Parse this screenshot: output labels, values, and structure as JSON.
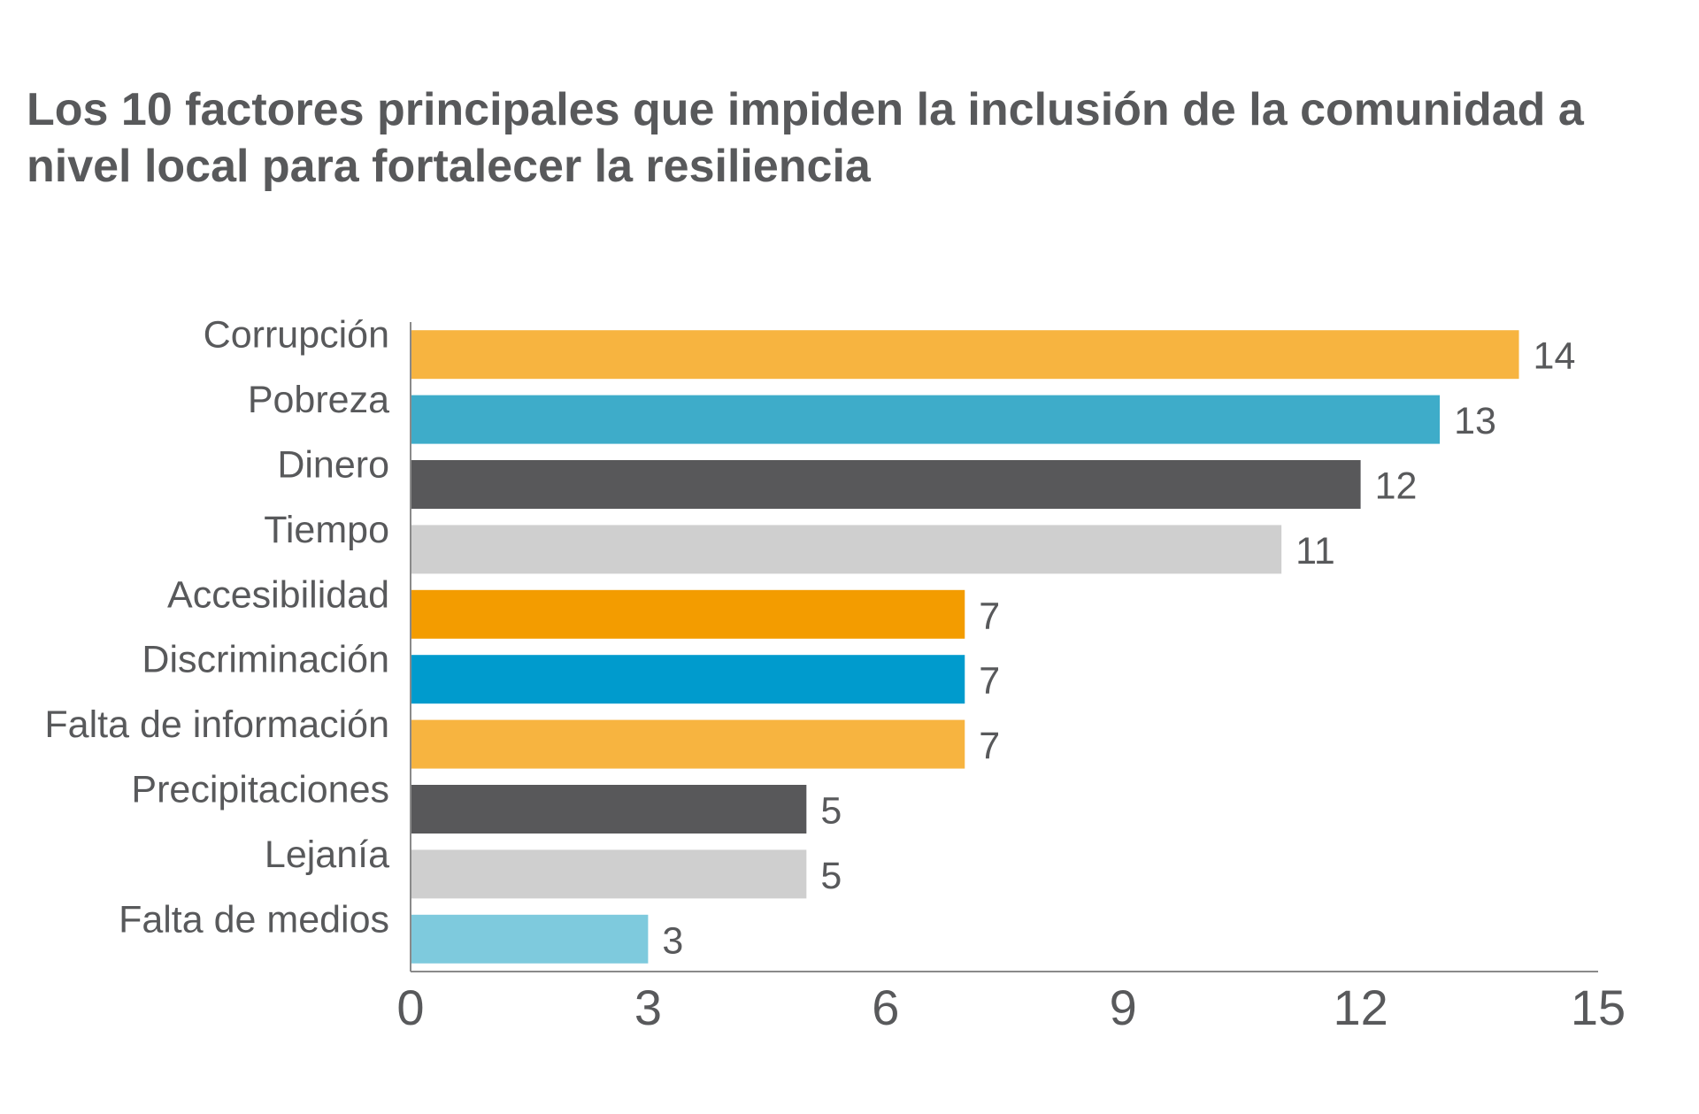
{
  "chart_data": {
    "type": "bar",
    "orientation": "horizontal",
    "title": "Los 10 factores principales que impiden la inclusión de la comunidad a nivel local para fortalecer la resiliencia",
    "categories": [
      "Corrupción",
      "Pobreza",
      "Dinero",
      "Tiempo",
      "Accesibilidad",
      "Discriminación",
      "Falta de información",
      "Precipitaciones",
      "Lejanía",
      "Falta de medios"
    ],
    "values": [
      14,
      13,
      12,
      11,
      7,
      7,
      7,
      5,
      5,
      3
    ],
    "colors": [
      "#f7b440",
      "#3eacc9",
      "#58585a",
      "#cfcfcf",
      "#f39c00",
      "#009bcd",
      "#f7b440",
      "#58585a",
      "#cfcfcf",
      "#7ecadd"
    ],
    "xlim": [
      0,
      15
    ],
    "xticks": [
      0,
      3,
      6,
      9,
      12,
      15
    ],
    "xlabel": "",
    "ylabel": "",
    "grid": false,
    "data_labels": true
  }
}
